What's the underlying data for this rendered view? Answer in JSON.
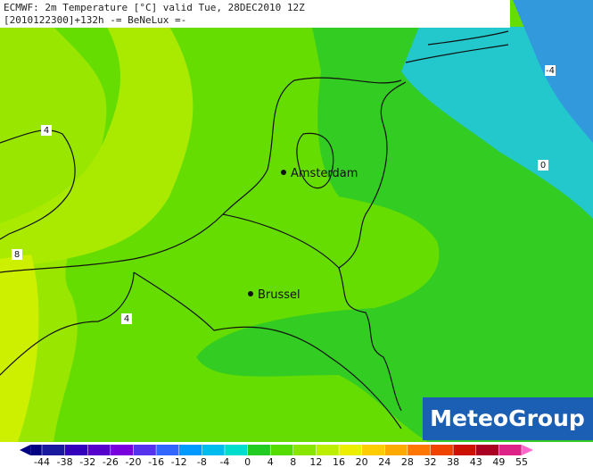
{
  "header": {
    "line1": "ECMWF: 2m Temperature [°C] valid Tue, 28DEC2010 12Z",
    "line2": "[2010122300]+132h -= BeNeLux =-"
  },
  "cities": [
    {
      "name": "Amsterdam"
    },
    {
      "name": "Brussel"
    }
  ],
  "contour_labels": [
    "4",
    "-4",
    "0",
    "8",
    "4"
  ],
  "logo": "MeteoGroup",
  "colorbar": {
    "ticks": [
      -44,
      -38,
      -32,
      -26,
      -20,
      -16,
      -12,
      -8,
      -4,
      0,
      4,
      8,
      12,
      16,
      20,
      24,
      28,
      32,
      38,
      43,
      49,
      55
    ]
  }
}
